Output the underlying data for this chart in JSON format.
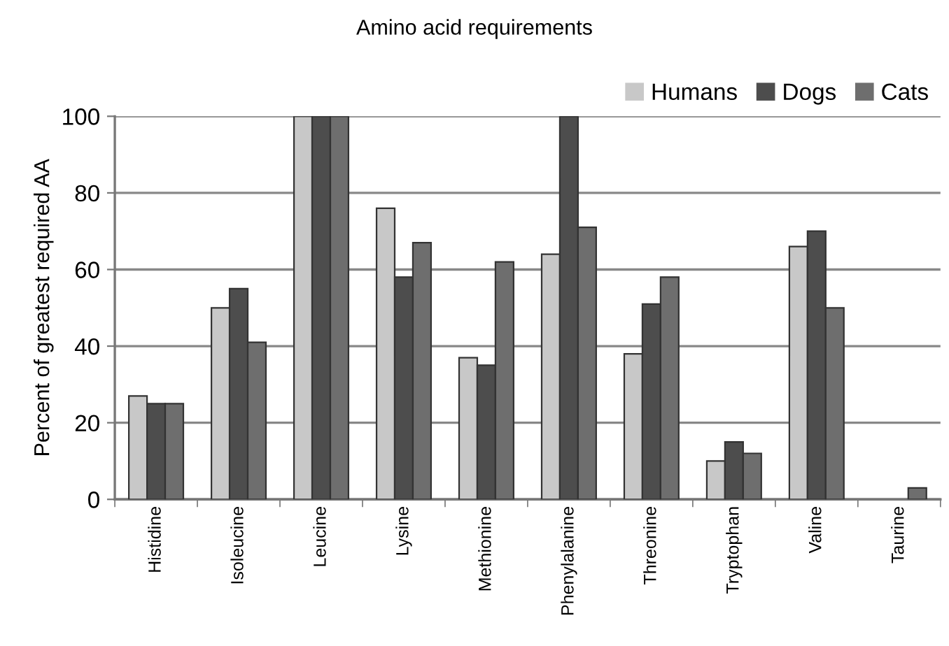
{
  "chart_data": {
    "type": "bar",
    "title": "Amino acid requirements",
    "ylabel": "Percent of greatest required AA",
    "categories": [
      "Histidine",
      "Isoleucine",
      "Leucine",
      "Lysine",
      "Methionine",
      "Phenylalanine",
      "Threonine",
      "Tryptophan",
      "Valine",
      "Taurine"
    ],
    "series": [
      {
        "name": "Humans",
        "color": "#c8c8c8",
        "values": [
          27,
          50,
          100,
          76,
          37,
          64,
          38,
          10,
          66,
          null
        ]
      },
      {
        "name": "Dogs",
        "color": "#4d4d4d",
        "values": [
          25,
          55,
          100,
          58,
          35,
          100,
          51,
          15,
          70,
          null
        ]
      },
      {
        "name": "Cats",
        "color": "#6e6e6e",
        "values": [
          25,
          41,
          100,
          67,
          62,
          71,
          58,
          12,
          50,
          3
        ]
      }
    ],
    "ylim": [
      0,
      100
    ],
    "yticks": [
      0,
      20,
      40,
      60,
      80,
      100
    ],
    "grid": "y",
    "legend": "top right"
  }
}
